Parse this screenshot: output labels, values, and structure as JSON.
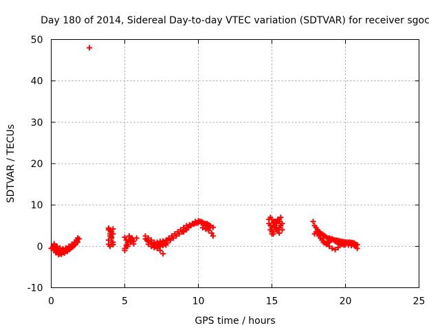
{
  "chart_data": {
    "type": "scatter",
    "title": "Day 180 of 2014, Sidereal Day-to-day VTEC variation (SDTVAR) for receiver sgoc",
    "xlabel": "GPS time / hours",
    "ylabel": "SDTVAR / TECUs",
    "xlim": [
      0,
      25
    ],
    "ylim": [
      -10,
      50
    ],
    "xticks": [
      "0",
      "5",
      "10",
      "15",
      "20",
      "25"
    ],
    "yticks": [
      "-10",
      "0",
      "10",
      "20",
      "30",
      "40",
      "50"
    ],
    "grid": true,
    "marker": "plus",
    "color": "#ff0000",
    "series": [
      {
        "name": "SDTVAR",
        "x": [
          0.0,
          0.2,
          0.4,
          0.6,
          0.8,
          1.0,
          1.2,
          1.4,
          1.6,
          1.8,
          0.1,
          0.3,
          0.5,
          0.7,
          0.9,
          1.1,
          1.3,
          1.5,
          1.7,
          1.9,
          0.2,
          0.4,
          0.6,
          0.8,
          1.0,
          1.2,
          1.4,
          1.6,
          1.8,
          0.3,
          0.5,
          0.7,
          0.9,
          1.1,
          1.3,
          1.5,
          1.7,
          0.2,
          0.4,
          0.3,
          2.6,
          3.9,
          4.0,
          4.1,
          4.2,
          3.9,
          4.0,
          4.1,
          4.2,
          3.9,
          4.0,
          4.1,
          4.2,
          3.9,
          4.0,
          4.1,
          4.2,
          5.0,
          5.1,
          5.2,
          5.3,
          5.4,
          5.5,
          5.6,
          5.8,
          5.0,
          5.2,
          5.4,
          5.6,
          5.1,
          5.3,
          5.5,
          5.0,
          5.2,
          5.4,
          6.4,
          6.6,
          6.8,
          7.0,
          7.2,
          7.4,
          7.6,
          7.8,
          8.0,
          6.5,
          6.7,
          6.9,
          7.1,
          7.3,
          7.5,
          7.7,
          7.9,
          6.6,
          6.8,
          7.0,
          7.2,
          7.4,
          7.6,
          7.8,
          6.4,
          6.6,
          6.8,
          7.0,
          7.2,
          7.4,
          7.6,
          7.3,
          7.5,
          7.6,
          8.0,
          8.2,
          8.4,
          8.6,
          8.8,
          9.0,
          9.2,
          9.4,
          9.6,
          9.8,
          10.0,
          10.2,
          10.4,
          10.6,
          10.8,
          8.1,
          8.3,
          8.5,
          8.7,
          8.9,
          9.1,
          9.3,
          9.5,
          9.7,
          9.9,
          10.1,
          10.3,
          10.5,
          10.7,
          9.0,
          9.2,
          9.4,
          9.6,
          9.8,
          10.0,
          10.2,
          10.4,
          10.6,
          10.8,
          10.3,
          10.5,
          10.7,
          10.9,
          11.0,
          10.6,
          10.8,
          11.0,
          14.8,
          14.9,
          15.0,
          15.1,
          15.2,
          15.3,
          15.4,
          15.5,
          15.6,
          15.7,
          14.8,
          14.9,
          15.0,
          15.1,
          15.2,
          15.3,
          15.4,
          15.5,
          15.6,
          15.7,
          14.9,
          15.0,
          15.1,
          15.2,
          15.3,
          15.4,
          15.5,
          15.6,
          15.1,
          15.3,
          15.5,
          15.0,
          15.2,
          15.4,
          17.8,
          17.9,
          18.0,
          18.1,
          18.2,
          18.3,
          18.4,
          18.5,
          18.6,
          18.7,
          18.8,
          18.9,
          19.0,
          19.1,
          19.2,
          19.3,
          19.4,
          19.5,
          19.6,
          19.7,
          19.8,
          19.9,
          20.0,
          20.1,
          20.2,
          20.3,
          20.4,
          20.5,
          20.6,
          20.7,
          17.9,
          18.0,
          18.1,
          18.2,
          18.3,
          18.4,
          18.5,
          18.6,
          18.7,
          18.8,
          18.9,
          19.0,
          19.1,
          19.2,
          19.3,
          19.4,
          19.5,
          19.6,
          19.7,
          19.8,
          19.9,
          20.0,
          20.2,
          20.4,
          20.6,
          18.1,
          18.3,
          18.5,
          18.7,
          18.9,
          19.1,
          19.3,
          19.5,
          20.7,
          20.8,
          20.8,
          20.5
        ],
        "y": [
          -0.5,
          -1.0,
          -1.5,
          -1.8,
          -1.5,
          -1.2,
          -0.8,
          -0.3,
          0.3,
          1.0,
          -0.2,
          -0.6,
          -1.0,
          -1.2,
          -1.0,
          -0.6,
          -0.2,
          0.4,
          1.0,
          1.8,
          0.3,
          0.0,
          -0.4,
          -0.6,
          -0.4,
          0.0,
          0.5,
          1.0,
          2.0,
          -1.5,
          -2.0,
          -1.9,
          -1.6,
          -1.2,
          -0.6,
          0.0,
          1.5,
          0.6,
          -0.8,
          0.0,
          48.0,
          4.0,
          3.0,
          2.0,
          1.0,
          0.5,
          2.5,
          3.5,
          4.2,
          1.5,
          0.0,
          1.0,
          3.0,
          4.4,
          4.0,
          2.2,
          0.4,
          2.2,
          1.5,
          1.0,
          1.6,
          2.0,
          1.6,
          1.2,
          2.0,
          -0.5,
          0.5,
          1.0,
          0.6,
          0.3,
          2.5,
          2.0,
          -1.0,
          0.0,
          1.2,
          2.5,
          2.0,
          1.5,
          1.0,
          1.0,
          1.2,
          1.3,
          1.5,
          1.8,
          1.5,
          1.0,
          0.5,
          0.3,
          0.2,
          0.4,
          0.6,
          0.8,
          0.5,
          0.0,
          -0.3,
          -0.5,
          0.0,
          0.2,
          0.3,
          1.8,
          1.2,
          0.6,
          0.2,
          -0.5,
          -1.0,
          -1.8,
          0.5,
          0.8,
          1.2,
          2.0,
          2.5,
          3.0,
          3.5,
          4.0,
          4.5,
          5.0,
          5.2,
          5.4,
          5.6,
          5.8,
          5.6,
          5.4,
          5.2,
          5.0,
          1.5,
          2.0,
          2.5,
          3.0,
          3.5,
          4.0,
          4.5,
          5.0,
          5.4,
          5.6,
          6.0,
          5.8,
          5.5,
          5.2,
          3.5,
          4.0,
          5.0,
          5.5,
          6.0,
          6.2,
          6.0,
          5.5,
          5.0,
          4.5,
          4.5,
          4.2,
          3.8,
          3.2,
          2.5,
          5.5,
          5.0,
          4.6,
          6.5,
          7.0,
          6.5,
          5.8,
          5.0,
          4.5,
          4.0,
          4.5,
          5.0,
          5.5,
          5.5,
          5.0,
          4.5,
          5.0,
          5.5,
          6.0,
          6.5,
          6.0,
          5.0,
          4.0,
          4.0,
          3.5,
          3.0,
          4.5,
          5.5,
          6.0,
          6.5,
          7.0,
          3.5,
          4.0,
          3.2,
          3.0,
          6.0,
          6.2,
          6.0,
          5.0,
          4.5,
          4.0,
          3.5,
          3.2,
          3.0,
          2.8,
          2.5,
          2.2,
          2.0,
          2.0,
          1.8,
          1.8,
          1.6,
          1.5,
          1.5,
          1.4,
          1.3,
          1.2,
          1.2,
          1.1,
          1.0,
          1.0,
          1.0,
          1.0,
          0.9,
          0.9,
          0.8,
          0.5,
          3.0,
          3.5,
          3.0,
          2.5,
          2.0,
          1.5,
          1.0,
          0.8,
          0.5,
          0.8,
          1.0,
          1.5,
          1.8,
          1.5,
          1.2,
          1.0,
          0.8,
          0.6,
          0.5,
          0.5,
          0.3,
          0.4,
          0.3,
          0.2,
          0.2,
          4.0,
          3.0,
          2.0,
          0.8,
          0.0,
          -0.5,
          -0.8,
          -0.3,
          0.0,
          -0.5,
          0.4,
          0.5
        ]
      }
    ]
  }
}
